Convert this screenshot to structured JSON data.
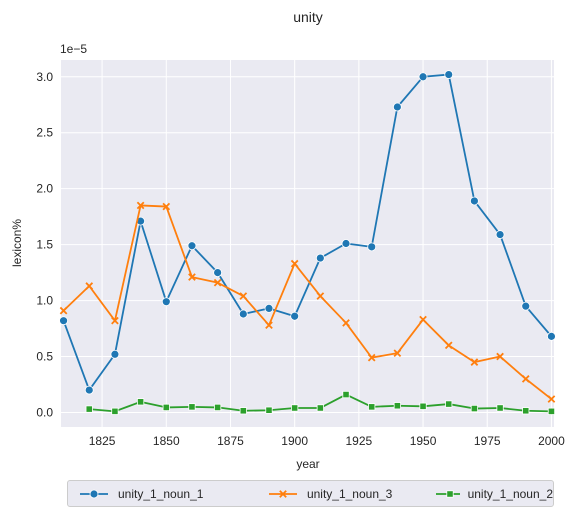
{
  "chart_data": {
    "type": "line",
    "title": "unity",
    "xlabel": "year",
    "ylabel": "lexicon%",
    "y_offset_text": "1e−5",
    "xlim": [
      1809,
      2001
    ],
    "ylim": [
      -1.3e-06,
      3.15e-05
    ],
    "x_ticks": [
      1825,
      1850,
      1875,
      1900,
      1925,
      1950,
      1975,
      2000
    ],
    "x_tick_labels": [
      "1825",
      "1850",
      "1875",
      "1900",
      "1925",
      "1950",
      "1975",
      "2000"
    ],
    "y_ticks": [
      0,
      5e-06,
      1e-05,
      1.5e-05,
      2e-05,
      2.5e-05,
      3e-05
    ],
    "y_tick_labels": [
      "0.0",
      "0.5",
      "1.0",
      "1.5",
      "2.0",
      "2.5",
      "3.0"
    ],
    "grid": true,
    "legend_position": "bottom",
    "background": "#eaeaf2",
    "series": [
      {
        "name": "unity_1_noun_1",
        "color": "#1f77b4",
        "marker": "circle",
        "x": [
          1810,
          1820,
          1830,
          1840,
          1850,
          1860,
          1870,
          1880,
          1890,
          1900,
          1910,
          1920,
          1930,
          1940,
          1950,
          1960,
          1970,
          1980,
          1990,
          2000
        ],
        "y": [
          8.2e-06,
          2e-06,
          5.2e-06,
          1.71e-05,
          9.9e-06,
          1.49e-05,
          1.25e-05,
          8.8e-06,
          9.3e-06,
          8.6e-06,
          1.38e-05,
          1.51e-05,
          1.48e-05,
          2.73e-05,
          3e-05,
          3.02e-05,
          1.89e-05,
          1.59e-05,
          9.5e-06,
          6.8e-06
        ]
      },
      {
        "name": "unity_1_noun_3",
        "color": "#ff7f0e",
        "marker": "x",
        "x": [
          1810,
          1820,
          1830,
          1840,
          1850,
          1860,
          1870,
          1880,
          1890,
          1900,
          1910,
          1920,
          1930,
          1940,
          1950,
          1960,
          1970,
          1980,
          1990,
          2000
        ],
        "y": [
          9.1e-06,
          1.13e-05,
          8.2e-06,
          1.85e-05,
          1.84e-05,
          1.21e-05,
          1.16e-05,
          1.04e-05,
          7.8e-06,
          1.33e-05,
          1.04e-05,
          8e-06,
          4.9e-06,
          5.3e-06,
          8.3e-06,
          6e-06,
          4.5e-06,
          5e-06,
          3e-06,
          1.2e-06
        ]
      },
      {
        "name": "unity_1_noun_2",
        "color": "#2ca02c",
        "marker": "square",
        "x": [
          1820,
          1830,
          1840,
          1850,
          1860,
          1870,
          1880,
          1890,
          1900,
          1910,
          1920,
          1930,
          1940,
          1950,
          1960,
          1970,
          1980,
          1990,
          2000
        ],
        "y": [
          3e-07,
          1e-07,
          9.5e-07,
          4.5e-07,
          5e-07,
          4.5e-07,
          1.5e-07,
          2e-07,
          4e-07,
          4e-07,
          1.6e-06,
          5e-07,
          6e-07,
          5.5e-07,
          7.5e-07,
          3.5e-07,
          4e-07,
          1.5e-07,
          1e-07
        ]
      }
    ]
  }
}
